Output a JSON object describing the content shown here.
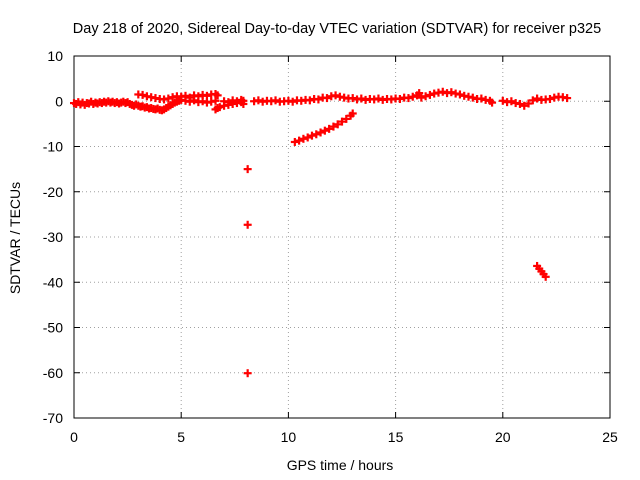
{
  "chart_data": {
    "type": "scatter",
    "title": "Day 218 of 2020, Sidereal Day-to-day VTEC variation (SDTVAR) for receiver p325",
    "xlabel": "GPS time / hours",
    "ylabel": "SDTVAR / TECUs",
    "xlim": [
      0,
      25
    ],
    "ylim": [
      -70,
      10
    ],
    "xticks": [
      0,
      5,
      10,
      15,
      20,
      25
    ],
    "yticks": [
      10,
      0,
      -10,
      -20,
      -30,
      -40,
      -50,
      -60,
      -70
    ],
    "grid": true,
    "legend": "none",
    "marker_color": "#ff0000",
    "series": [
      {
        "name": "SDTVAR",
        "points": [
          [
            0.0,
            -0.4
          ],
          [
            0.1,
            -0.6
          ],
          [
            0.2,
            -0.2
          ],
          [
            0.3,
            -0.7
          ],
          [
            0.4,
            -0.3
          ],
          [
            0.5,
            -0.8
          ],
          [
            0.6,
            -0.4
          ],
          [
            0.7,
            -0.5
          ],
          [
            0.8,
            -0.1
          ],
          [
            0.9,
            -0.6
          ],
          [
            1.0,
            -0.3
          ],
          [
            1.1,
            -0.5
          ],
          [
            1.2,
            -0.2
          ],
          [
            1.3,
            -0.4
          ],
          [
            1.4,
            -0.1
          ],
          [
            1.5,
            -0.3
          ],
          [
            1.6,
            0.0
          ],
          [
            1.7,
            -0.3
          ],
          [
            1.8,
            -0.1
          ],
          [
            1.9,
            -0.4
          ],
          [
            2.0,
            -0.2
          ],
          [
            2.1,
            -0.5
          ],
          [
            2.2,
            -0.3
          ],
          [
            2.3,
            -0.1
          ],
          [
            2.4,
            -0.4
          ],
          [
            2.5,
            -0.2
          ],
          [
            2.6,
            -0.6
          ],
          [
            2.7,
            -0.8
          ],
          [
            2.8,
            -1.0
          ],
          [
            2.9,
            -0.7
          ],
          [
            3.0,
            -1.0
          ],
          [
            3.1,
            -1.2
          ],
          [
            3.2,
            -1.1
          ],
          [
            3.3,
            -1.4
          ],
          [
            3.4,
            -1.3
          ],
          [
            3.5,
            -1.6
          ],
          [
            3.6,
            -1.5
          ],
          [
            3.7,
            -1.7
          ],
          [
            3.8,
            -1.8
          ],
          [
            3.9,
            -1.6
          ],
          [
            4.0,
            -1.9
          ],
          [
            4.1,
            -2.0
          ],
          [
            4.2,
            -1.8
          ],
          [
            4.3,
            -1.5
          ],
          [
            4.4,
            -1.2
          ],
          [
            4.5,
            -0.9
          ],
          [
            4.6,
            -0.6
          ],
          [
            4.7,
            -0.3
          ],
          [
            4.8,
            -0.1
          ],
          [
            4.9,
            0.1
          ],
          [
            3.0,
            1.5
          ],
          [
            3.2,
            1.4
          ],
          [
            3.4,
            1.1
          ],
          [
            3.6,
            0.9
          ],
          [
            3.8,
            0.7
          ],
          [
            4.0,
            0.5
          ],
          [
            4.2,
            0.4
          ],
          [
            4.4,
            0.6
          ],
          [
            4.6,
            0.9
          ],
          [
            4.8,
            1.1
          ],
          [
            5.0,
            1.0
          ],
          [
            5.2,
            1.2
          ],
          [
            5.4,
            0.8
          ],
          [
            5.6,
            1.3
          ],
          [
            5.8,
            1.1
          ],
          [
            6.0,
            1.4
          ],
          [
            6.2,
            1.2
          ],
          [
            6.4,
            1.5
          ],
          [
            6.6,
            1.6
          ],
          [
            6.7,
            1.3
          ],
          [
            5.0,
            0.3
          ],
          [
            5.2,
            0.1
          ],
          [
            5.4,
            -0.1
          ],
          [
            5.6,
            0.2
          ],
          [
            5.8,
            -0.2
          ],
          [
            6.0,
            0.0
          ],
          [
            6.2,
            -0.3
          ],
          [
            6.4,
            -0.1
          ],
          [
            6.6,
            0.1
          ],
          [
            6.6,
            -1.8
          ],
          [
            6.7,
            -1.5
          ],
          [
            6.8,
            -1.3
          ],
          [
            7.0,
            -1.0
          ],
          [
            7.2,
            -0.8
          ],
          [
            7.4,
            -0.6
          ],
          [
            7.6,
            -0.4
          ],
          [
            7.8,
            -0.2
          ],
          [
            7.9,
            -0.6
          ],
          [
            7.0,
            0.0
          ],
          [
            7.2,
            -0.2
          ],
          [
            7.4,
            0.2
          ],
          [
            7.6,
            0.0
          ],
          [
            7.8,
            0.3
          ],
          [
            7.9,
            0.1
          ],
          [
            8.1,
            -15.0
          ],
          [
            8.1,
            -27.3
          ],
          [
            8.1,
            -60.1
          ],
          [
            8.4,
            0.0
          ],
          [
            8.6,
            0.2
          ],
          [
            8.8,
            -0.1
          ],
          [
            9.0,
            0.1
          ],
          [
            9.2,
            0.0
          ],
          [
            9.4,
            0.2
          ],
          [
            9.6,
            -0.1
          ],
          [
            9.8,
            0.0
          ],
          [
            10.0,
            0.1
          ],
          [
            10.2,
            -0.1
          ],
          [
            10.4,
            0.2
          ],
          [
            10.6,
            0.1
          ],
          [
            10.8,
            0.3
          ],
          [
            11.0,
            0.2
          ],
          [
            11.2,
            0.5
          ],
          [
            11.4,
            0.4
          ],
          [
            11.6,
            0.8
          ],
          [
            11.8,
            0.7
          ],
          [
            12.0,
            1.1
          ],
          [
            12.2,
            1.3
          ],
          [
            12.4,
            1.0
          ],
          [
            12.6,
            0.8
          ],
          [
            12.8,
            0.6
          ],
          [
            13.0,
            0.7
          ],
          [
            13.2,
            0.4
          ],
          [
            13.4,
            0.6
          ],
          [
            13.6,
            0.3
          ],
          [
            13.8,
            0.5
          ],
          [
            14.0,
            0.4
          ],
          [
            14.2,
            0.6
          ],
          [
            14.4,
            0.3
          ],
          [
            14.6,
            0.5
          ],
          [
            14.8,
            0.4
          ],
          [
            15.0,
            0.6
          ],
          [
            15.2,
            0.5
          ],
          [
            15.4,
            0.8
          ],
          [
            15.6,
            0.7
          ],
          [
            15.8,
            1.0
          ],
          [
            16.0,
            1.3
          ],
          [
            16.1,
            1.8
          ],
          [
            10.3,
            -9.0
          ],
          [
            10.5,
            -8.7
          ],
          [
            10.7,
            -8.3
          ],
          [
            10.9,
            -8.0
          ],
          [
            11.1,
            -7.6
          ],
          [
            11.3,
            -7.3
          ],
          [
            11.5,
            -6.9
          ],
          [
            11.7,
            -6.5
          ],
          [
            11.9,
            -6.1
          ],
          [
            12.1,
            -5.6
          ],
          [
            12.3,
            -5.1
          ],
          [
            12.5,
            -4.5
          ],
          [
            12.7,
            -3.9
          ],
          [
            12.9,
            -3.2
          ],
          [
            13.0,
            -2.7
          ],
          [
            16.2,
            0.8
          ],
          [
            16.4,
            1.1
          ],
          [
            16.6,
            1.4
          ],
          [
            16.8,
            1.7
          ],
          [
            17.0,
            1.9
          ],
          [
            17.2,
            2.1
          ],
          [
            17.4,
            1.8
          ],
          [
            17.6,
            2.0
          ],
          [
            17.8,
            1.7
          ],
          [
            18.0,
            1.5
          ],
          [
            18.2,
            1.2
          ],
          [
            18.4,
            1.0
          ],
          [
            18.6,
            0.8
          ],
          [
            18.8,
            0.5
          ],
          [
            19.0,
            0.6
          ],
          [
            19.2,
            0.3
          ],
          [
            19.4,
            0.1
          ],
          [
            19.5,
            -0.3
          ],
          [
            20.0,
            0.1
          ],
          [
            20.2,
            -0.2
          ],
          [
            20.4,
            0.0
          ],
          [
            20.6,
            -0.4
          ],
          [
            20.8,
            -0.6
          ],
          [
            21.0,
            -1.0
          ],
          [
            21.2,
            -0.5
          ],
          [
            21.4,
            0.2
          ],
          [
            21.6,
            0.6
          ],
          [
            21.8,
            0.3
          ],
          [
            22.0,
            0.4
          ],
          [
            22.2,
            0.5
          ],
          [
            22.4,
            0.8
          ],
          [
            22.6,
            1.0
          ],
          [
            22.8,
            0.9
          ],
          [
            23.0,
            0.7
          ],
          [
            21.6,
            -36.4
          ],
          [
            21.7,
            -37.0
          ],
          [
            21.8,
            -37.6
          ],
          [
            21.9,
            -38.2
          ],
          [
            22.0,
            -38.8
          ]
        ]
      }
    ]
  }
}
